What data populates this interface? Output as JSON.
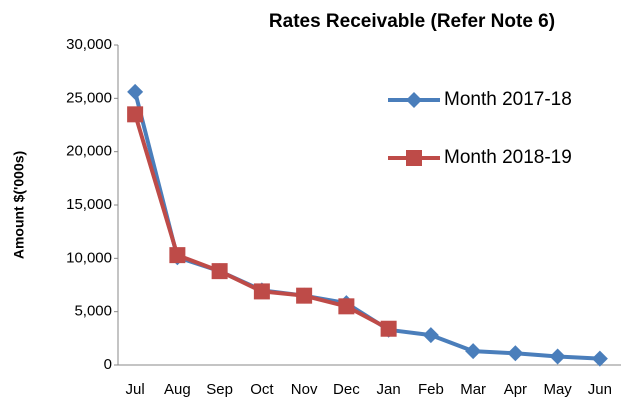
{
  "chart_data": {
    "type": "line",
    "title": "Rates Receivable (Refer Note 6)",
    "y_label": "Amount $('000s)",
    "categories": [
      "Jul",
      "Aug",
      "Sep",
      "Oct",
      "Nov",
      "Dec",
      "Jan",
      "Feb",
      "Mar",
      "Apr",
      "May",
      "Jun"
    ],
    "series": [
      {
        "name": "Month 2017-18",
        "color": "#4a7ebb",
        "marker": "diamond",
        "values": [
          25600,
          10100,
          8800,
          7000,
          6500,
          5800,
          3300,
          2800,
          1300,
          1100,
          800,
          600
        ]
      },
      {
        "name": "Month 2018-19",
        "color": "#be4b48",
        "marker": "square",
        "values": [
          23500,
          10300,
          8800,
          6900,
          6500,
          5500,
          3400,
          null,
          null,
          null,
          null,
          null
        ]
      }
    ],
    "ylim": [
      0,
      30000
    ],
    "yticks": [
      0,
      {
        "value": 5000,
        "label": "5,000"
      },
      {
        "value": 10000,
        "label": "10,000"
      },
      {
        "value": 15000,
        "label": "15,000"
      },
      {
        "value": 20000,
        "label": "20,000"
      },
      {
        "value": 25000,
        "label": "25,000"
      },
      {
        "value": 30000,
        "label": "30,000"
      }
    ],
    "grid": false,
    "legend": "right"
  }
}
